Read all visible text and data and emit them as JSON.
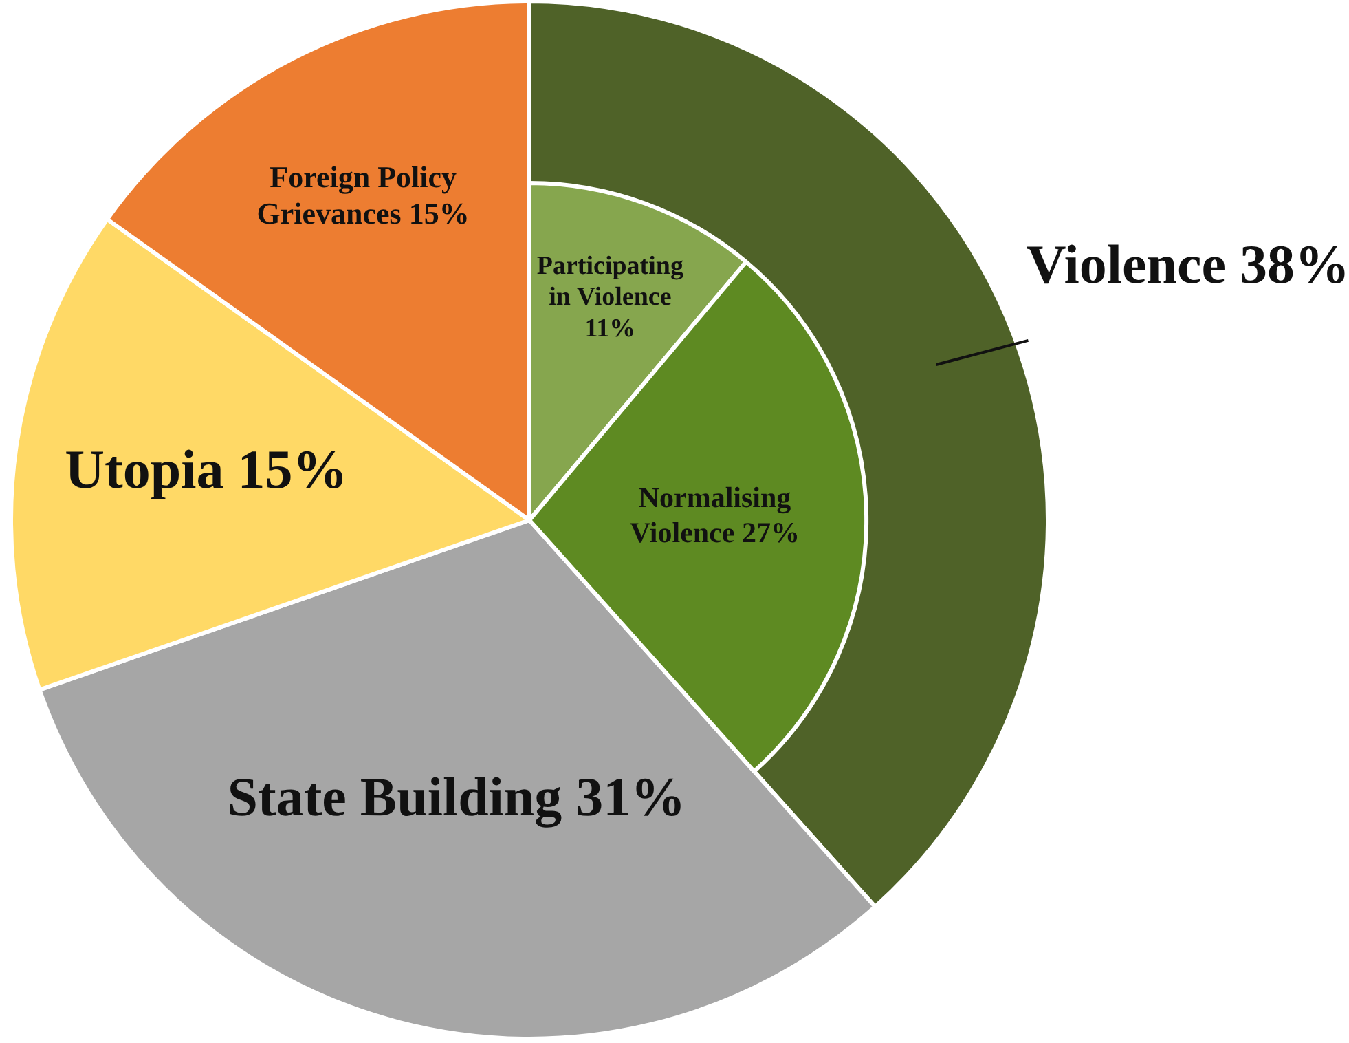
{
  "chart_data": [
    {
      "type": "pie",
      "legend": false,
      "categories": [
        "Violence",
        "State Building",
        "Utopia",
        "Foreign Policy Grievances"
      ],
      "values": [
        38,
        31,
        15,
        15
      ],
      "colors": [
        "#4f6228",
        "#a6a6a6",
        "#ffd966",
        "#ed7d31"
      ],
      "value_labels": [
        "38%",
        "31%",
        "15%",
        "15%"
      ]
    },
    {
      "type": "pie",
      "legend": false,
      "categories": [
        "Participating in Violence",
        "Normalising Violence"
      ],
      "values": [
        11,
        27
      ],
      "colors": [
        "#86a64e",
        "#5e8a22"
      ],
      "value_labels": [
        "11%",
        "27%"
      ]
    }
  ]
}
